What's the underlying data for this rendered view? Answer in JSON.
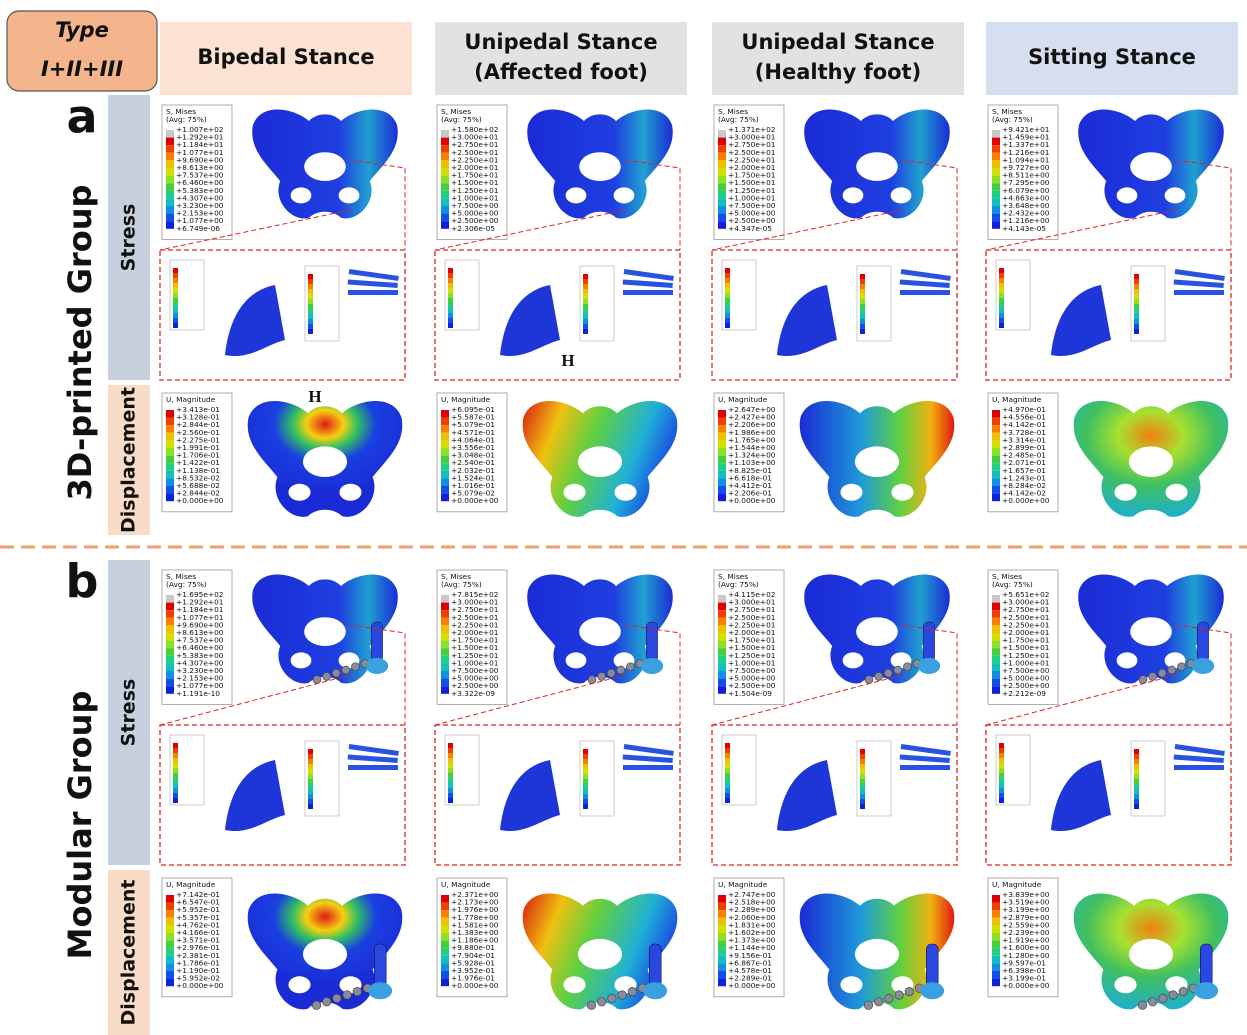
{
  "header": {
    "type_label": {
      "line1": "Type",
      "line2": "I+II+III"
    }
  },
  "columns": [
    {
      "lines": [
        "Bipedal Stance"
      ]
    },
    {
      "lines": [
        "Unipedal Stance",
        "(Affected foot)"
      ]
    },
    {
      "lines": [
        "Unipedal Stance",
        "(Healthy foot)"
      ]
    },
    {
      "lines": [
        "Sitting Stance"
      ]
    }
  ],
  "groups": [
    {
      "label": "a",
      "name": "3D-printed Group",
      "annotations": [
        "H",
        "H"
      ],
      "rows": [
        {
          "label": "Stress",
          "legends": [
            {
              "title": "S, Mises",
              "avg": "(Avg: 75%)",
              "values": [
                "+1.007e+02",
                "+1.292e+01",
                "+1.184e+01",
                "+1.077e+01",
                "+9.690e+00",
                "+8.613e+00",
                "+7.537e+00",
                "+6.460e+00",
                "+5.383e+00",
                "+4.307e+00",
                "+3.230e+00",
                "+2.153e+00",
                "+1.077e+00",
                "+6.749e-06"
              ]
            },
            {
              "title": "S, Mises",
              "avg": "(Avg: 75%)",
              "values": [
                "+1.580e+02",
                "+3.000e+01",
                "+2.750e+01",
                "+2.500e+01",
                "+2.250e+01",
                "+2.000e+01",
                "+1.750e+01",
                "+1.500e+01",
                "+1.250e+01",
                "+1.000e+01",
                "+7.500e+00",
                "+5.000e+00",
                "+2.500e+00",
                "+2.306e-05"
              ]
            },
            {
              "title": "S, Mises",
              "avg": "(Avg: 75%)",
              "values": [
                "+1.371e+02",
                "+3.000e+01",
                "+2.750e+01",
                "+2.500e+01",
                "+2.250e+01",
                "+2.000e+01",
                "+1.750e+01",
                "+1.500e+01",
                "+1.250e+01",
                "+1.000e+01",
                "+7.500e+00",
                "+5.000e+00",
                "+2.500e+00",
                "+4.347e-05"
              ]
            },
            {
              "title": "S, Mises",
              "avg": "(Avg: 75%)",
              "values": [
                "+9.421e+01",
                "+1.459e+01",
                "+1.337e+01",
                "+1.216e+01",
                "+1.094e+01",
                "+9.727e+00",
                "+8.511e+00",
                "+7.295e+00",
                "+6.079e+00",
                "+4.863e+00",
                "+3.648e+00",
                "+2.432e+00",
                "+1.216e+00",
                "+4.143e-05"
              ]
            }
          ]
        },
        {
          "label": "Displacement",
          "legends": [
            {
              "title": "U, Magnitude",
              "values": [
                "+3.413e-01",
                "+3.128e-01",
                "+2.844e-01",
                "+2.560e-01",
                "+2.275e-01",
                "+1.991e-01",
                "+1.706e-01",
                "+1.422e-01",
                "+1.138e-01",
                "+8.532e-02",
                "+5.688e-02",
                "+2.844e-02",
                "+0.000e+00"
              ]
            },
            {
              "title": "U, Magnitude",
              "values": [
                "+6.095e-01",
                "+5.587e-01",
                "+5.079e-01",
                "+4.571e-01",
                "+4.064e-01",
                "+3.556e-01",
                "+3.048e-01",
                "+2.540e-01",
                "+2.032e-01",
                "+1.524e-01",
                "+1.016e-01",
                "+5.079e-02",
                "+0.000e+00"
              ]
            },
            {
              "title": "U, Magnitude",
              "values": [
                "+2.647e+00",
                "+2.427e+00",
                "+2.206e+00",
                "+1.986e+00",
                "+1.765e+00",
                "+1.544e+00",
                "+1.324e+00",
                "+1.103e+00",
                "+8.825e-01",
                "+6.618e-01",
                "+4.412e-01",
                "+2.206e-01",
                "+0.000e+00"
              ]
            },
            {
              "title": "U, Magnitude",
              "values": [
                "+4.970e-01",
                "+4.556e-01",
                "+4.142e-01",
                "+3.728e-01",
                "+3.314e-01",
                "+2.899e-01",
                "+2.485e-01",
                "+2.071e-01",
                "+1.657e-01",
                "+1.243e-01",
                "+8.284e-02",
                "+4.142e-02",
                "+0.000e+00"
              ]
            }
          ]
        }
      ]
    },
    {
      "label": "b",
      "name": "Modular Group",
      "annotations": [],
      "rows": [
        {
          "label": "Stress",
          "legends": [
            {
              "title": "S, Mises",
              "avg": "(Avg: 75%)",
              "values": [
                "+1.695e+02",
                "+1.292e+01",
                "+1.184e+01",
                "+1.077e+01",
                "+9.690e+00",
                "+8.613e+00",
                "+7.537e+00",
                "+6.460e+00",
                "+5.383e+00",
                "+4.307e+00",
                "+3.230e+00",
                "+2.153e+00",
                "+1.077e+00",
                "+1.191e-10"
              ]
            },
            {
              "title": "S, Mises",
              "avg": "(Avg: 75%)",
              "values": [
                "+7.815e+02",
                "+3.000e+01",
                "+2.750e+01",
                "+2.500e+01",
                "+2.250e+01",
                "+2.000e+01",
                "+1.750e+01",
                "+1.500e+01",
                "+1.250e+01",
                "+1.000e+01",
                "+7.500e+00",
                "+5.000e+00",
                "+2.500e+00",
                "+3.322e-09"
              ]
            },
            {
              "title": "S, Mises",
              "avg": "(Avg: 75%)",
              "values": [
                "+4.115e+02",
                "+3.000e+01",
                "+2.750e+01",
                "+2.500e+01",
                "+2.250e+01",
                "+2.000e+01",
                "+1.750e+01",
                "+1.500e+01",
                "+1.250e+01",
                "+1.000e+01",
                "+7.500e+00",
                "+5.000e+00",
                "+2.500e+00",
                "+1.504e-09"
              ]
            },
            {
              "title": "S, Mises",
              "avg": "(Avg: 75%)",
              "values": [
                "+5.651e+02",
                "+3.000e+01",
                "+2.750e+01",
                "+2.500e+01",
                "+2.250e+01",
                "+2.000e+01",
                "+1.750e+01",
                "+1.500e+01",
                "+1.250e+01",
                "+1.000e+01",
                "+7.500e+00",
                "+5.000e+00",
                "+2.500e+00",
                "+2.212e-09"
              ]
            }
          ]
        },
        {
          "label": "Displacement",
          "legends": [
            {
              "title": "U, Magnitude",
              "values": [
                "+7.142e-01",
                "+6.547e-01",
                "+5.952e-01",
                "+5.357e-01",
                "+4.762e-01",
                "+4.166e-01",
                "+3.571e-01",
                "+2.976e-01",
                "+2.381e-01",
                "+1.786e-01",
                "+1.190e-01",
                "+5.952e-02",
                "+0.000e+00"
              ]
            },
            {
              "title": "U, Magnitude",
              "values": [
                "+2.371e+00",
                "+2.173e+00",
                "+1.976e+00",
                "+1.778e+00",
                "+1.581e+00",
                "+1.383e+00",
                "+1.186e+00",
                "+9.880e-01",
                "+7.904e-01",
                "+5.928e-01",
                "+3.952e-01",
                "+1.976e-01",
                "+0.000e+00"
              ]
            },
            {
              "title": "U, Magnitude",
              "values": [
                "+2.747e+00",
                "+2.518e+00",
                "+2.289e+00",
                "+2.060e+00",
                "+1.831e+00",
                "+1.602e+00",
                "+1.373e+00",
                "+1.144e+00",
                "+9.156e-01",
                "+6.867e-01",
                "+4.578e-01",
                "+2.289e-01",
                "+0.000e+00"
              ]
            },
            {
              "title": "U, Magnitude",
              "values": [
                "+3.839e+00",
                "+3.519e+00",
                "+3.199e+00",
                "+2.879e+00",
                "+2.559e+00",
                "+2.239e+00",
                "+1.919e+00",
                "+1.600e+00",
                "+1.280e+00",
                "+9.597e-01",
                "+6.398e-01",
                "+3.199e-01",
                "+0.000e+00"
              ]
            }
          ]
        }
      ]
    }
  ]
}
